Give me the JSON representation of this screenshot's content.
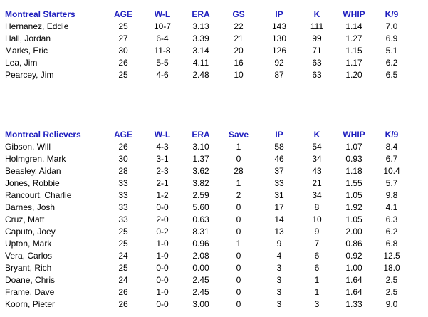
{
  "starters": {
    "header": [
      "Montreal Starters",
      "AGE",
      "W-L",
      "ERA",
      "GS",
      "IP",
      "K",
      "WHIP",
      "K/9"
    ],
    "rows": [
      [
        "Hernanez, Eddie",
        "25",
        "10-7",
        "3.13",
        "22",
        "143",
        "111",
        "1.14",
        "7.0"
      ],
      [
        "Hall, Jordan",
        "27",
        "6-4",
        "3.39",
        "21",
        "130",
        "99",
        "1.27",
        "6.9"
      ],
      [
        "Marks, Eric",
        "30",
        "11-8",
        "3.14",
        "20",
        "126",
        "71",
        "1.15",
        "5.1"
      ],
      [
        "Lea, Jim",
        "26",
        "5-5",
        "4.11",
        "16",
        "92",
        "63",
        "1.17",
        "6.2"
      ],
      [
        "Pearcey, Jim",
        "25",
        "4-6",
        "2.48",
        "10",
        "87",
        "63",
        "1.20",
        "6.5"
      ]
    ]
  },
  "relievers": {
    "header": [
      "Montreal Relievers",
      "AGE",
      "W-L",
      "ERA",
      "Save",
      "IP",
      "K",
      "WHIP",
      "K/9"
    ],
    "rows": [
      [
        "Gibson, Will",
        "26",
        "4-3",
        "3.10",
        "1",
        "58",
        "54",
        "1.07",
        "8.4"
      ],
      [
        "Holmgren, Mark",
        "30",
        "3-1",
        "1.37",
        "0",
        "46",
        "34",
        "0.93",
        "6.7"
      ],
      [
        "Beasley, Aidan",
        "28",
        "2-3",
        "3.62",
        "28",
        "37",
        "43",
        "1.18",
        "10.4"
      ],
      [
        "Jones, Robbie",
        "33",
        "2-1",
        "3.82",
        "1",
        "33",
        "21",
        "1.55",
        "5.7"
      ],
      [
        "Rancourt, Charlie",
        "33",
        "1-2",
        "2.59",
        "2",
        "31",
        "34",
        "1.05",
        "9.8"
      ],
      [
        "Barnes, Josh",
        "33",
        "0-0",
        "5.60",
        "0",
        "17",
        "8",
        "1.92",
        "4.1"
      ],
      [
        "Cruz, Matt",
        "33",
        "2-0",
        "0.63",
        "0",
        "14",
        "10",
        "1.05",
        "6.3"
      ],
      [
        "Caputo, Joey",
        "25",
        "0-2",
        "8.31",
        "0",
        "13",
        "9",
        "2.00",
        "6.2"
      ],
      [
        "Upton, Mark",
        "25",
        "1-0",
        "0.96",
        "1",
        "9",
        "7",
        "0.86",
        "6.8"
      ],
      [
        "Vera, Carlos",
        "24",
        "1-0",
        "2.08",
        "0",
        "4",
        "6",
        "0.92",
        "12.5"
      ],
      [
        "Bryant, Rich",
        "25",
        "0-0",
        "0.00",
        "0",
        "3",
        "6",
        "1.00",
        "18.0"
      ],
      [
        "Doane, Chris",
        "24",
        "0-0",
        "2.45",
        "0",
        "3",
        "1",
        "1.64",
        "2.5"
      ],
      [
        "Frame, Dave",
        "26",
        "1-0",
        "2.45",
        "0",
        "3",
        "1",
        "1.64",
        "2.5"
      ],
      [
        "Koorn, Pieter",
        "26",
        "0-0",
        "3.00",
        "0",
        "3",
        "3",
        "1.33",
        "9.0"
      ]
    ]
  }
}
